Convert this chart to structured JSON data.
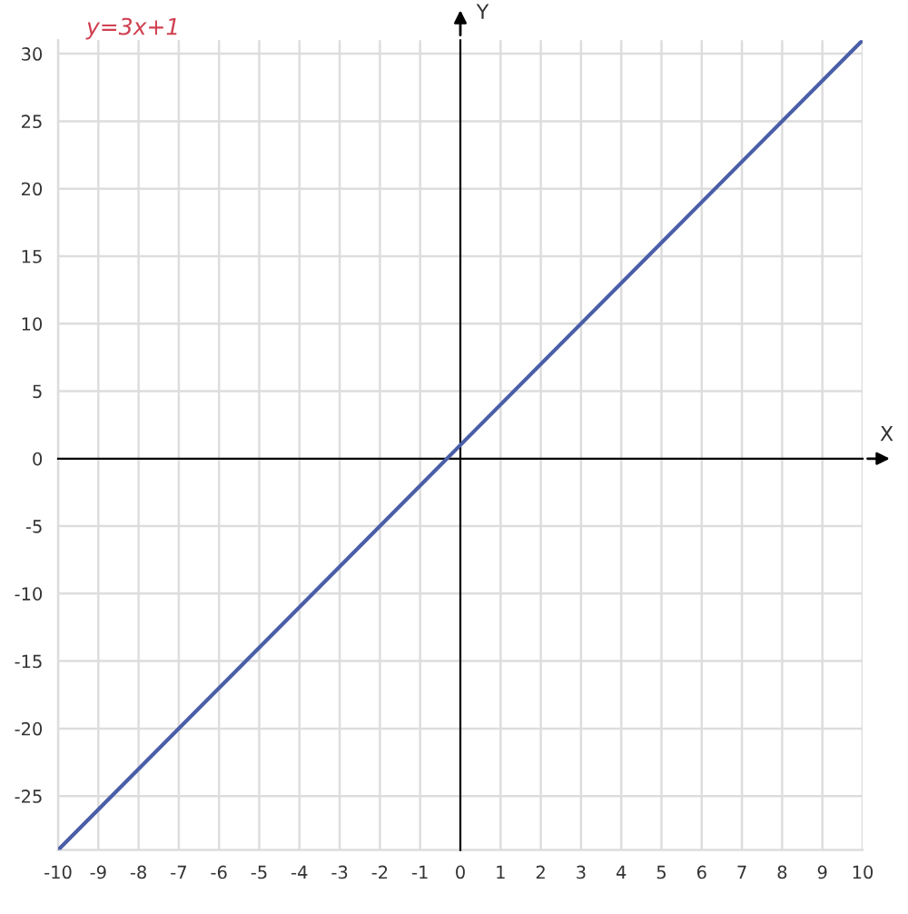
{
  "chart_data": {
    "type": "line",
    "x": [
      -10,
      10
    ],
    "series": [
      {
        "color": "#4a5ea8",
        "values": [
          -29,
          31
        ]
      }
    ],
    "xlim": [
      -10,
      10
    ],
    "ylim": [
      -29,
      31
    ],
    "xticks": [
      -10,
      -9,
      -8,
      -7,
      -6,
      -5,
      -4,
      -3,
      -2,
      -1,
      0,
      1,
      2,
      3,
      4,
      5,
      6,
      7,
      8,
      9,
      10
    ],
    "yticks": [
      -25,
      -20,
      -15,
      -10,
      -5,
      0,
      5,
      10,
      15,
      20,
      25,
      30
    ],
    "xlabel": "X",
    "ylabel": "Y",
    "grid": true,
    "marker": "none",
    "line_style": "solid",
    "annotations": [
      "y=3x+1"
    ]
  }
}
